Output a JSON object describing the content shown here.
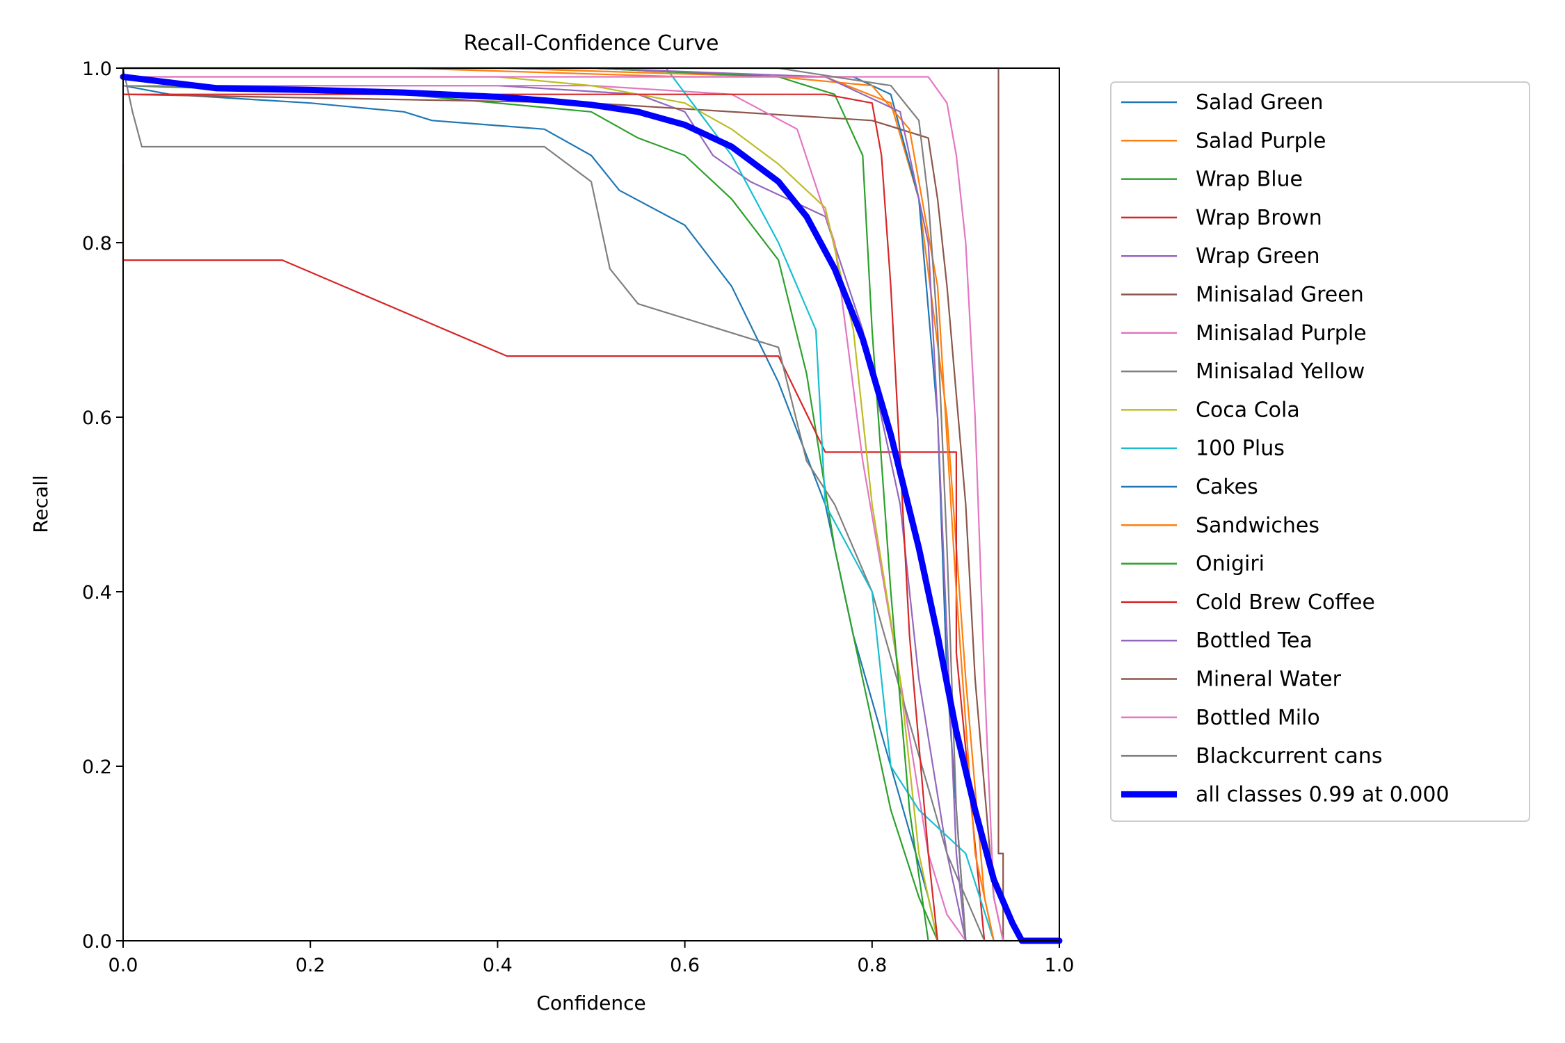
{
  "chart_data": {
    "type": "line",
    "title": "Recall-Confidence Curve",
    "xlabel": "Confidence",
    "ylabel": "Recall",
    "xlim": [
      0.0,
      1.0
    ],
    "ylim": [
      0.0,
      1.0
    ],
    "xticks": [
      "0.0",
      "0.2",
      "0.4",
      "0.6",
      "0.8",
      "1.0"
    ],
    "yticks": [
      "0.0",
      "0.2",
      "0.4",
      "0.6",
      "0.8",
      "1.0"
    ],
    "grid": false,
    "legend_position": "outside-right",
    "series": [
      {
        "name": "Salad Green",
        "color": "#1f77b4",
        "x": [
          0,
          0.05,
          0.2,
          0.3,
          0.33,
          0.45,
          0.5,
          0.53,
          0.6,
          0.65,
          0.7,
          0.75,
          0.78,
          0.82,
          0.86,
          0.87
        ],
        "y": [
          0.98,
          0.97,
          0.96,
          0.95,
          0.94,
          0.93,
          0.9,
          0.86,
          0.82,
          0.75,
          0.64,
          0.5,
          0.35,
          0.2,
          0.05,
          0.0
        ]
      },
      {
        "name": "Salad Purple",
        "color": "#ff7f0e",
        "x": [
          0,
          0.3,
          0.6,
          0.75,
          0.82,
          0.85,
          0.88,
          0.9,
          0.92,
          0.93
        ],
        "y": [
          1.0,
          1.0,
          0.99,
          0.99,
          0.96,
          0.85,
          0.6,
          0.3,
          0.05,
          0.0
        ]
      },
      {
        "name": "Wrap Blue",
        "color": "#2ca02c",
        "x": [
          0,
          0.3,
          0.5,
          0.55,
          0.6,
          0.65,
          0.7,
          0.73,
          0.76,
          0.79,
          0.82,
          0.85,
          0.87
        ],
        "y": [
          0.98,
          0.97,
          0.95,
          0.92,
          0.9,
          0.85,
          0.78,
          0.65,
          0.45,
          0.3,
          0.15,
          0.05,
          0.0
        ]
      },
      {
        "name": "Wrap Brown",
        "color": "#d62728",
        "x": [
          0,
          0.0,
          0.17,
          0.41,
          0.7,
          0.75,
          0.76,
          0.89,
          0.89,
          0.92
        ],
        "y": [
          0.89,
          0.78,
          0.78,
          0.67,
          0.67,
          0.56,
          0.56,
          0.56,
          0.33,
          0.0
        ]
      },
      {
        "name": "Wrap Green",
        "color": "#9467bd",
        "x": [
          0,
          0.4,
          0.55,
          0.6,
          0.63,
          0.67,
          0.75,
          0.79,
          0.83,
          0.85,
          0.88,
          0.9
        ],
        "y": [
          0.98,
          0.98,
          0.97,
          0.95,
          0.9,
          0.87,
          0.83,
          0.7,
          0.5,
          0.3,
          0.1,
          0.0
        ]
      },
      {
        "name": "Minisalad Green",
        "color": "#8c564b",
        "x": [
          0,
          0.5,
          0.8,
          0.86,
          0.87,
          0.88,
          0.9,
          0.91,
          0.93,
          0.94
        ],
        "y": [
          0.97,
          0.96,
          0.94,
          0.92,
          0.85,
          0.75,
          0.5,
          0.3,
          0.05,
          0.0
        ]
      },
      {
        "name": "Minisalad Purple",
        "color": "#e377c2",
        "x": [
          0,
          0.5,
          0.65,
          0.72,
          0.76,
          0.79,
          0.83,
          0.86,
          0.88,
          0.9
        ],
        "y": [
          0.98,
          0.98,
          0.97,
          0.93,
          0.8,
          0.55,
          0.3,
          0.1,
          0.03,
          0.0
        ]
      },
      {
        "name": "Minisalad Yellow",
        "color": "#7f7f7f",
        "x": [
          0,
          0.01,
          0.02,
          0.45,
          0.5,
          0.52,
          0.55,
          0.7,
          0.73,
          0.76,
          0.8,
          0.84,
          0.88,
          0.92
        ],
        "y": [
          1.0,
          0.95,
          0.91,
          0.91,
          0.87,
          0.77,
          0.73,
          0.68,
          0.55,
          0.5,
          0.4,
          0.25,
          0.1,
          0.0
        ]
      },
      {
        "name": "Coca Cola",
        "color": "#bcbd22",
        "x": [
          0,
          0.4,
          0.5,
          0.6,
          0.65,
          0.7,
          0.75,
          0.78,
          0.8,
          0.83,
          0.85,
          0.87
        ],
        "y": [
          0.99,
          0.99,
          0.98,
          0.96,
          0.93,
          0.89,
          0.84,
          0.7,
          0.5,
          0.3,
          0.1,
          0.0
        ]
      },
      {
        "name": "100 Plus",
        "color": "#17becf",
        "x": [
          0,
          0.58,
          0.65,
          0.7,
          0.74,
          0.75,
          0.8,
          0.82,
          0.85,
          0.9,
          0.93
        ],
        "y": [
          1.0,
          1.0,
          0.9,
          0.8,
          0.7,
          0.5,
          0.4,
          0.2,
          0.15,
          0.1,
          0.0
        ]
      },
      {
        "name": "Cakes",
        "color": "#1f77b4",
        "x": [
          0,
          0.5,
          0.7,
          0.78,
          0.82,
          0.85,
          0.87,
          0.88,
          0.9
        ],
        "y": [
          1.0,
          1.0,
          0.99,
          0.99,
          0.97,
          0.85,
          0.6,
          0.3,
          0.0
        ]
      },
      {
        "name": "Sandwiches",
        "color": "#ff7f0e",
        "x": [
          0,
          0.4,
          0.7,
          0.8,
          0.84,
          0.87,
          0.89,
          0.91,
          0.93
        ],
        "y": [
          1.0,
          1.0,
          0.99,
          0.98,
          0.93,
          0.75,
          0.4,
          0.1,
          0.0
        ]
      },
      {
        "name": "Onigiri",
        "color": "#2ca02c",
        "x": [
          0,
          0.5,
          0.7,
          0.76,
          0.79,
          0.8,
          0.82,
          0.84,
          0.86
        ],
        "y": [
          1.0,
          1.0,
          0.99,
          0.97,
          0.9,
          0.7,
          0.4,
          0.15,
          0.0
        ]
      },
      {
        "name": "Cold Brew Coffee",
        "color": "#d62728",
        "x": [
          0,
          0.75,
          0.8,
          0.81,
          0.82,
          0.83,
          0.84,
          0.86,
          0.87
        ],
        "y": [
          0.97,
          0.97,
          0.96,
          0.9,
          0.75,
          0.55,
          0.35,
          0.1,
          0.0
        ]
      },
      {
        "name": "Bottled Tea",
        "color": "#9467bd",
        "x": [
          0,
          0.5,
          0.75,
          0.83,
          0.86,
          0.87,
          0.88,
          0.89,
          0.9
        ],
        "y": [
          1.0,
          1.0,
          0.99,
          0.95,
          0.8,
          0.6,
          0.35,
          0.1,
          0.0
        ]
      },
      {
        "name": "Mineral Water",
        "color": "#8c564b",
        "x": [
          0,
          0.3,
          0.93,
          0.935,
          0.935,
          0.94,
          0.94,
          0.95
        ],
        "y": [
          1.0,
          1.0,
          1.0,
          1.0,
          0.1,
          0.1,
          0.0,
          0.0
        ]
      },
      {
        "name": "Bottled Milo",
        "color": "#e377c2",
        "x": [
          0,
          0.8,
          0.86,
          0.88,
          0.89,
          0.9,
          0.91,
          0.92,
          0.93,
          0.94
        ],
        "y": [
          0.99,
          0.99,
          0.99,
          0.96,
          0.9,
          0.8,
          0.6,
          0.3,
          0.05,
          0.0
        ]
      },
      {
        "name": "Blackcurrent cans",
        "color": "#7f7f7f",
        "x": [
          0,
          0.7,
          0.82,
          0.85,
          0.86,
          0.87,
          0.88,
          0.89,
          0.9
        ],
        "y": [
          1.0,
          1.0,
          0.98,
          0.94,
          0.85,
          0.7,
          0.45,
          0.15,
          0.0
        ]
      },
      {
        "name": "all classes 0.99 at 0.000",
        "color": "#0000ff",
        "thick": true,
        "x": [
          0,
          0.1,
          0.2,
          0.3,
          0.4,
          0.45,
          0.5,
          0.55,
          0.6,
          0.65,
          0.7,
          0.73,
          0.76,
          0.79,
          0.82,
          0.85,
          0.87,
          0.89,
          0.91,
          0.93,
          0.95,
          0.96,
          1.0
        ],
        "y": [
          0.99,
          0.977,
          0.975,
          0.972,
          0.967,
          0.963,
          0.958,
          0.95,
          0.935,
          0.91,
          0.87,
          0.83,
          0.77,
          0.69,
          0.58,
          0.45,
          0.35,
          0.24,
          0.15,
          0.07,
          0.02,
          0.0,
          0.0
        ]
      }
    ]
  }
}
